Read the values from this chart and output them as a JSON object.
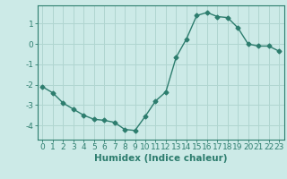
{
  "x": [
    0,
    1,
    2,
    3,
    4,
    5,
    6,
    7,
    8,
    9,
    10,
    11,
    12,
    13,
    14,
    15,
    16,
    17,
    18,
    19,
    20,
    21,
    22,
    23
  ],
  "y": [
    -2.1,
    -2.4,
    -2.9,
    -3.2,
    -3.5,
    -3.7,
    -3.75,
    -3.85,
    -4.2,
    -4.25,
    -3.55,
    -2.8,
    -2.35,
    -0.65,
    0.25,
    1.4,
    1.55,
    1.35,
    1.3,
    0.8,
    0.0,
    -0.1,
    -0.1,
    -0.35
  ],
  "line_color": "#2d7d6e",
  "marker": "D",
  "markersize": 2.5,
  "background_color": "#cceae7",
  "grid_color": "#b0d5d0",
  "xlabel": "Humidex (Indice chaleur)",
  "ylim": [
    -4.7,
    1.9
  ],
  "xlim": [
    -0.5,
    23.5
  ],
  "yticks": [
    -4,
    -3,
    -2,
    -1,
    0,
    1
  ],
  "xticks": [
    0,
    1,
    2,
    3,
    4,
    5,
    6,
    7,
    8,
    9,
    10,
    11,
    12,
    13,
    14,
    15,
    16,
    17,
    18,
    19,
    20,
    21,
    22,
    23
  ],
  "xtick_labels": [
    "0",
    "1",
    "2",
    "3",
    "4",
    "5",
    "6",
    "7",
    "8",
    "9",
    "10",
    "11",
    "12",
    "13",
    "14",
    "15",
    "16",
    "17",
    "18",
    "19",
    "20",
    "21",
    "22",
    "23"
  ],
  "tick_color": "#2d7d6e",
  "spine_color": "#2d7d6e",
  "label_fontsize": 7.5,
  "tick_fontsize": 6.5
}
